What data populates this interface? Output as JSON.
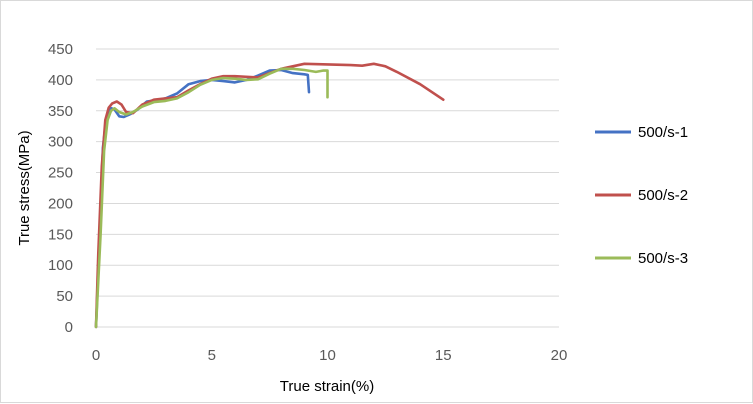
{
  "chart_data": {
    "type": "line",
    "title": "",
    "xlabel": "True strain(%)",
    "ylabel": "True stress(MPa)",
    "xlim": [
      0,
      20
    ],
    "ylim": [
      0,
      450
    ],
    "xticks": [
      0,
      5,
      10,
      15,
      20
    ],
    "yticks": [
      0,
      50,
      100,
      150,
      200,
      250,
      300,
      350,
      400,
      450
    ],
    "grid": "horizontal",
    "legend_position": "right",
    "series": [
      {
        "name": "500/s-1",
        "color": "#4472C4",
        "x": [
          0,
          0.15,
          0.3,
          0.45,
          0.6,
          0.8,
          1.0,
          1.2,
          1.5,
          1.8,
          2.2,
          2.6,
          3.0,
          3.5,
          4.0,
          4.5,
          5.0,
          5.5,
          6.0,
          6.5,
          7.0,
          7.5,
          8.0,
          8.5,
          9.0,
          9.15,
          9.2
        ],
        "y": [
          0,
          140,
          290,
          340,
          355,
          352,
          341,
          340,
          345,
          352,
          365,
          367,
          370,
          378,
          393,
          398,
          400,
          398,
          396,
          400,
          407,
          415,
          416,
          411,
          409,
          408,
          380
        ]
      },
      {
        "name": "500/s-2",
        "color": "#C0504D",
        "x": [
          0,
          0.1,
          0.25,
          0.4,
          0.55,
          0.7,
          0.9,
          1.1,
          1.3,
          1.6,
          2.0,
          2.5,
          3.0,
          3.5,
          4.0,
          4.5,
          5.0,
          5.5,
          6.0,
          7.0,
          8.0,
          9.0,
          10.0,
          11.0,
          11.5,
          12.0,
          12.5,
          13.0,
          14.0,
          15.0
        ],
        "y": [
          0,
          120,
          260,
          335,
          355,
          362,
          365,
          360,
          348,
          346,
          360,
          368,
          370,
          372,
          383,
          393,
          402,
          406,
          406,
          404,
          418,
          426,
          425,
          424,
          423,
          426,
          422,
          413,
          393,
          368
        ]
      },
      {
        "name": "500/s-3",
        "color": "#9BBB59",
        "x": [
          0,
          0.2,
          0.35,
          0.5,
          0.65,
          0.8,
          1.0,
          1.3,
          1.6,
          2.0,
          2.5,
          3.0,
          3.5,
          4.0,
          4.5,
          5.0,
          5.5,
          6.0,
          6.5,
          7.0,
          7.5,
          8.0,
          8.5,
          9.0,
          9.5,
          9.8,
          10.0,
          10.0
        ],
        "y": [
          0,
          150,
          285,
          335,
          350,
          354,
          348,
          344,
          348,
          357,
          364,
          366,
          370,
          380,
          392,
          400,
          403,
          402,
          400,
          401,
          410,
          418,
          418,
          416,
          413,
          415,
          415,
          372
        ]
      }
    ]
  }
}
